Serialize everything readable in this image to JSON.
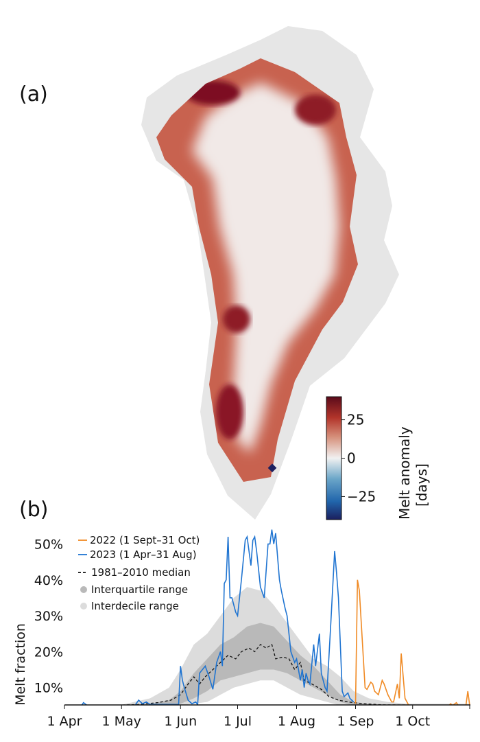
{
  "panels": {
    "a_label": "(a)",
    "b_label": "(b)"
  },
  "map": {
    "colorbar": {
      "label_line1": "Melt anomaly",
      "label_line2": "[days]",
      "range": [
        -40,
        40
      ],
      "ticks": [
        {
          "value": 25,
          "label": "25"
        },
        {
          "value": 0,
          "label": "0"
        },
        {
          "value": -25,
          "label": "−25"
        }
      ],
      "colors": [
        "#1b1f5e",
        "#2166ac",
        "#6aa5c8",
        "#f1f1f1",
        "#d6917c",
        "#b2342a",
        "#5a0b1a"
      ]
    },
    "land_color": "#e6e6e6"
  },
  "chart_data": {
    "type": "line",
    "ylabel": "Melt fraction",
    "xlabel": "",
    "ylim": [
      5.2,
      55
    ],
    "xlim": [
      "04-01",
      "10-31"
    ],
    "grid": false,
    "legend_placement": "top-left",
    "x_ticks": [
      {
        "date": "04-01",
        "label": "1 Apr"
      },
      {
        "date": "05-01",
        "label": "1 May"
      },
      {
        "date": "06-01",
        "label": "1 Jun"
      },
      {
        "date": "07-01",
        "label": "1 Jul"
      },
      {
        "date": "08-01",
        "label": "1 Aug"
      },
      {
        "date": "09-01",
        "label": "1 Sep"
      },
      {
        "date": "10-01",
        "label": "1 Oct"
      }
    ],
    "y_ticks": [
      {
        "value": 10,
        "label": "10%"
      },
      {
        "value": 20,
        "label": "20%"
      },
      {
        "value": 30,
        "label": "30%"
      },
      {
        "value": 40,
        "label": "40%"
      },
      {
        "value": 50,
        "label": "50%"
      }
    ],
    "bands": [
      {
        "name": "Interdecile range",
        "color": "#dcdcdc",
        "dates": [
          "04-01",
          "05-01",
          "05-16",
          "05-26",
          "06-01",
          "06-08",
          "06-15",
          "06-22",
          "06-29",
          "07-06",
          "07-13",
          "07-20",
          "07-27",
          "08-03",
          "08-10",
          "08-17",
          "08-24",
          "08-31",
          "09-08",
          "09-18",
          "09-28",
          "10-31"
        ],
        "lower": [
          5,
          5,
          5,
          5,
          5,
          5.5,
          6,
          8,
          10,
          11,
          12,
          12,
          10,
          8,
          7,
          6,
          5,
          5,
          5,
          5,
          5,
          5
        ],
        "upper": [
          5,
          5.2,
          7,
          10,
          15,
          22,
          25,
          30,
          35,
          38,
          37,
          33,
          28,
          23,
          18,
          16,
          13,
          9,
          7,
          6,
          5.5,
          5.5
        ]
      },
      {
        "name": "Interquartile range",
        "color": "#b9b9b9",
        "dates": [
          "04-01",
          "05-01",
          "05-16",
          "05-26",
          "06-01",
          "06-08",
          "06-15",
          "06-22",
          "06-29",
          "07-06",
          "07-13",
          "07-20",
          "07-27",
          "08-03",
          "08-10",
          "08-17",
          "08-24",
          "08-31",
          "09-08",
          "09-18",
          "09-28",
          "10-31"
        ],
        "lower": [
          5,
          5,
          5,
          5,
          5.5,
          7,
          9,
          12,
          13,
          14,
          15,
          15,
          14,
          12,
          10,
          8,
          6,
          5,
          5,
          5,
          5,
          5
        ],
        "upper": [
          5,
          5,
          5.5,
          6.5,
          9,
          14,
          18,
          22,
          24,
          27,
          28,
          27,
          23,
          19,
          16,
          12,
          8,
          6,
          5.5,
          5,
          5,
          5
        ]
      }
    ],
    "series": [
      {
        "name": "2022 (1 Sept–31 Oct)",
        "color": "#f08a24",
        "dash": false,
        "points": [
          [
            "09-01",
            5.5
          ],
          [
            "09-02",
            40
          ],
          [
            "09-03",
            37
          ],
          [
            "09-04",
            28
          ],
          [
            "09-06",
            10
          ],
          [
            "09-07",
            9.5
          ],
          [
            "09-09",
            11.5
          ],
          [
            "09-10",
            11
          ],
          [
            "09-11",
            9
          ],
          [
            "09-13",
            8
          ],
          [
            "09-15",
            12
          ],
          [
            "09-16",
            11
          ],
          [
            "09-18",
            8
          ],
          [
            "09-20",
            6
          ],
          [
            "09-21",
            6
          ],
          [
            "09-23",
            11
          ],
          [
            "09-24",
            7
          ],
          [
            "09-25",
            19.5
          ],
          [
            "09-27",
            7
          ],
          [
            "09-29",
            5
          ],
          [
            "10-20",
            5
          ],
          [
            "10-21",
            5.5
          ],
          [
            "10-22",
            5
          ],
          [
            "10-24",
            5.8
          ],
          [
            "10-25",
            5
          ],
          [
            "10-29",
            5
          ],
          [
            "10-30",
            9
          ],
          [
            "10-31",
            5
          ]
        ]
      },
      {
        "name": "2023 (1 Apr–31 Aug)",
        "color": "#1f74d1",
        "dash": false,
        "points": [
          [
            "04-01",
            5
          ],
          [
            "04-10",
            5
          ],
          [
            "04-11",
            5.8
          ],
          [
            "04-13",
            5
          ],
          [
            "04-30",
            5
          ],
          [
            "05-08",
            5
          ],
          [
            "05-10",
            6.5
          ],
          [
            "05-12",
            5.5
          ],
          [
            "05-14",
            6
          ],
          [
            "05-16",
            5.3
          ],
          [
            "05-31",
            5.3
          ],
          [
            "06-01",
            16
          ],
          [
            "06-02",
            12
          ],
          [
            "06-03",
            10
          ],
          [
            "06-05",
            6.5
          ],
          [
            "06-07",
            5.5
          ],
          [
            "06-09",
            6
          ],
          [
            "06-10",
            5.2
          ],
          [
            "06-11",
            14
          ],
          [
            "06-14",
            16
          ],
          [
            "06-16",
            13
          ],
          [
            "06-18",
            9.5
          ],
          [
            "06-20",
            17
          ],
          [
            "06-22",
            20
          ],
          [
            "06-23",
            16
          ],
          [
            "06-24",
            39
          ],
          [
            "06-25",
            40
          ],
          [
            "06-26",
            52
          ],
          [
            "06-27",
            35
          ],
          [
            "06-28",
            35
          ],
          [
            "06-30",
            31
          ],
          [
            "07-01",
            30
          ],
          [
            "07-03",
            40
          ],
          [
            "07-05",
            51
          ],
          [
            "07-06",
            52
          ],
          [
            "07-08",
            44
          ],
          [
            "07-09",
            51
          ],
          [
            "07-10",
            52
          ],
          [
            "07-11",
            48
          ],
          [
            "07-13",
            38
          ],
          [
            "07-15",
            35
          ],
          [
            "07-17",
            50
          ],
          [
            "07-18",
            50
          ],
          [
            "07-19",
            54
          ],
          [
            "07-20",
            50
          ],
          [
            "07-21",
            53
          ],
          [
            "07-23",
            40
          ],
          [
            "07-24",
            37
          ],
          [
            "07-26",
            32
          ],
          [
            "07-27",
            30
          ],
          [
            "07-29",
            20
          ],
          [
            "07-31",
            17
          ],
          [
            "08-01",
            18
          ],
          [
            "08-02",
            15
          ],
          [
            "08-03",
            12
          ],
          [
            "08-04",
            15
          ],
          [
            "08-05",
            10
          ],
          [
            "08-06",
            14
          ],
          [
            "08-07",
            12
          ],
          [
            "08-08",
            11
          ],
          [
            "08-10",
            22
          ],
          [
            "08-11",
            16
          ],
          [
            "08-13",
            25
          ],
          [
            "08-14",
            14
          ],
          [
            "08-16",
            10
          ],
          [
            "08-17",
            9
          ],
          [
            "08-19",
            28
          ],
          [
            "08-21",
            48
          ],
          [
            "08-22",
            42
          ],
          [
            "08-23",
            35
          ],
          [
            "08-25",
            9
          ],
          [
            "08-26",
            7.5
          ],
          [
            "08-28",
            8.5
          ],
          [
            "08-29",
            7
          ],
          [
            "08-31",
            6
          ]
        ]
      },
      {
        "name": "1981–2010 median",
        "color": "#111111",
        "dash": true,
        "points": [
          [
            "04-01",
            5
          ],
          [
            "04-25",
            5
          ],
          [
            "05-10",
            5.3
          ],
          [
            "05-20",
            5.8
          ],
          [
            "05-27",
            6.5
          ],
          [
            "06-01",
            8
          ],
          [
            "06-05",
            11
          ],
          [
            "06-08",
            13
          ],
          [
            "06-11",
            11
          ],
          [
            "06-14",
            13
          ],
          [
            "06-18",
            15
          ],
          [
            "06-22",
            17
          ],
          [
            "06-26",
            19
          ],
          [
            "06-30",
            18
          ],
          [
            "07-03",
            20
          ],
          [
            "07-07",
            21
          ],
          [
            "07-10",
            20
          ],
          [
            "07-13",
            22
          ],
          [
            "07-16",
            21
          ],
          [
            "07-19",
            22
          ],
          [
            "07-21",
            18
          ],
          [
            "07-25",
            18.5
          ],
          [
            "07-28",
            18
          ],
          [
            "07-31",
            15
          ],
          [
            "08-03",
            17
          ],
          [
            "08-05",
            12
          ],
          [
            "08-09",
            11
          ],
          [
            "08-14",
            9.5
          ],
          [
            "08-18",
            7.5
          ],
          [
            "08-23",
            6.5
          ],
          [
            "08-28",
            6
          ],
          [
            "09-05",
            5.5
          ],
          [
            "09-15",
            5.2
          ],
          [
            "10-31",
            5
          ]
        ]
      }
    ],
    "legend": [
      {
        "label": "2022 (1 Sept–31 Oct)",
        "marker": "line",
        "color": "#f08a24"
      },
      {
        "label": "2023 (1 Apr–31 Aug)",
        "marker": "line",
        "color": "#1f74d1"
      },
      {
        "label": "1981–2010 median",
        "marker": "dashed",
        "color": "#111111"
      },
      {
        "label": "Interquartile range",
        "marker": "dot",
        "color": "#b9b9b9"
      },
      {
        "label": "Interdecile range",
        "marker": "dot",
        "color": "#dcdcdc"
      }
    ]
  }
}
